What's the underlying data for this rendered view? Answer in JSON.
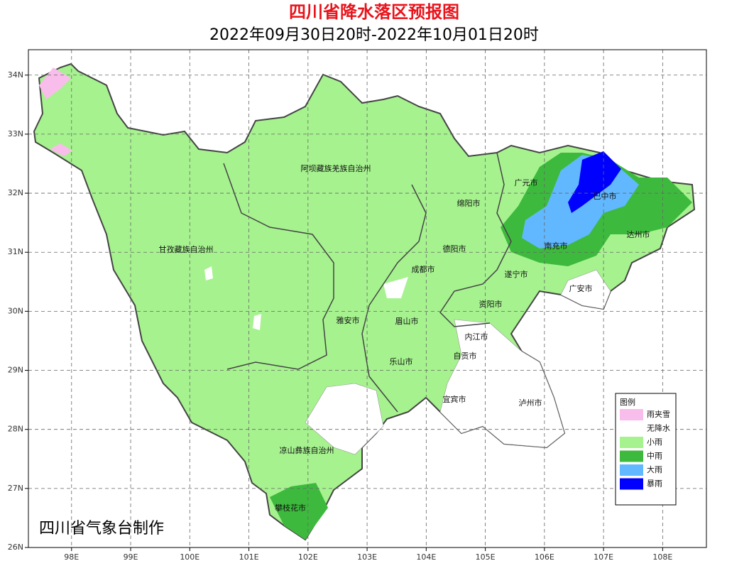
{
  "title": "四川省降水落区预报图",
  "subtitle": "2022年09月30日20时-2022年10月01日20时",
  "axes": {
    "xlim": [
      97.27,
      108.74
    ],
    "ylim": [
      26,
      34.43
    ],
    "xticks": [
      {
        "value": 98,
        "label": "98E"
      },
      {
        "value": 99,
        "label": "99E"
      },
      {
        "value": 100,
        "label": "100E"
      },
      {
        "value": 101,
        "label": "101E"
      },
      {
        "value": 102,
        "label": "102E"
      },
      {
        "value": 103,
        "label": "103E"
      },
      {
        "value": 104,
        "label": "104E"
      },
      {
        "value": 105,
        "label": "105E"
      },
      {
        "value": 106,
        "label": "106E"
      },
      {
        "value": 107,
        "label": "107E"
      },
      {
        "value": 108,
        "label": "108E"
      }
    ],
    "yticks": [
      {
        "value": 26,
        "label": "26N"
      },
      {
        "value": 27,
        "label": "27N"
      },
      {
        "value": 28,
        "label": "28N"
      },
      {
        "value": 29,
        "label": "29N"
      },
      {
        "value": 30,
        "label": "30N"
      },
      {
        "value": 31,
        "label": "31N"
      },
      {
        "value": 32,
        "label": "32N"
      },
      {
        "value": 33,
        "label": "33N"
      },
      {
        "value": 34,
        "label": "34N"
      }
    ]
  },
  "regions": [
    "阿坝藏族羌族自治州",
    "甘孜藏族自治州",
    "广元市",
    "巴中市",
    "绵阳市",
    "达州市",
    "德阳市",
    "南充市",
    "成都市",
    "遂宁市",
    "广安市",
    "资阳市",
    "雅安市",
    "眉山市",
    "内江市",
    "自贡市",
    "乐山市",
    "宜宾市",
    "泸州市",
    "凉山彝族自治州",
    "攀枝花市"
  ],
  "legend": {
    "title": "图例",
    "items": [
      {
        "label": "雨夹雪",
        "color": "#f9bdeb"
      },
      {
        "label": "无降水",
        "color": "#ffffff"
      },
      {
        "label": "小雨",
        "color": "#a6f28f"
      },
      {
        "label": "中雨",
        "color": "#3dba3d"
      },
      {
        "label": "大雨",
        "color": "#61b8ff"
      },
      {
        "label": "暴雨",
        "color": "#0000fe"
      }
    ]
  },
  "credit": "四川省气象台制作"
}
